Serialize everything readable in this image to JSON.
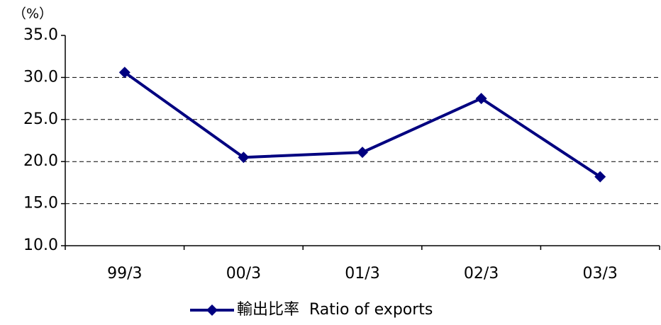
{
  "chart_data": {
    "type": "line",
    "y_label": "（%）",
    "categories": [
      "99/3",
      "00/3",
      "01/3",
      "02/3",
      "03/3"
    ],
    "series": [
      {
        "name": "輸出比率  Ratio of exports",
        "color": "#000080",
        "values": [
          30.6,
          20.5,
          21.1,
          27.5,
          18.2
        ]
      }
    ],
    "ylim": [
      10,
      35
    ],
    "yticks": [
      {
        "value": 10,
        "label": "10.0"
      },
      {
        "value": 15,
        "label": "15.0"
      },
      {
        "value": 20,
        "label": "20.0"
      },
      {
        "value": 25,
        "label": "25.0"
      },
      {
        "value": 30,
        "label": "30.0"
      },
      {
        "value": 35,
        "label": "35.0"
      }
    ],
    "grid": true,
    "legend": "bottom"
  }
}
